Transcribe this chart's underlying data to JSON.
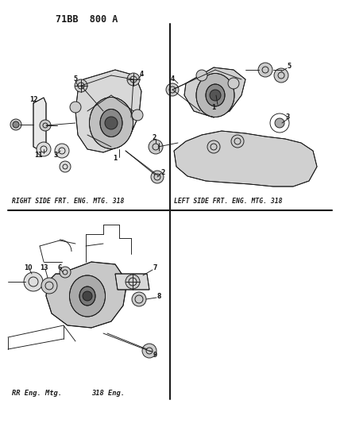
{
  "bg": "#ffffff",
  "lc": "#1a1a1a",
  "gray": "#888888",
  "title": "71BB  800 A",
  "title_fs": 8.5,
  "label_fs": 5.5,
  "caption_fs": 5.8,
  "divider_lw": 1.5,
  "draw_lw": 0.65,
  "tl_caption": "RIGHT SIDE FRT. ENG. MTG. 318",
  "tr_caption": "LEFT SIDE FRT. ENG. MTG. 318",
  "bl_caption1": "RR Eng. Mtg.",
  "bl_caption2": "318 Eng."
}
